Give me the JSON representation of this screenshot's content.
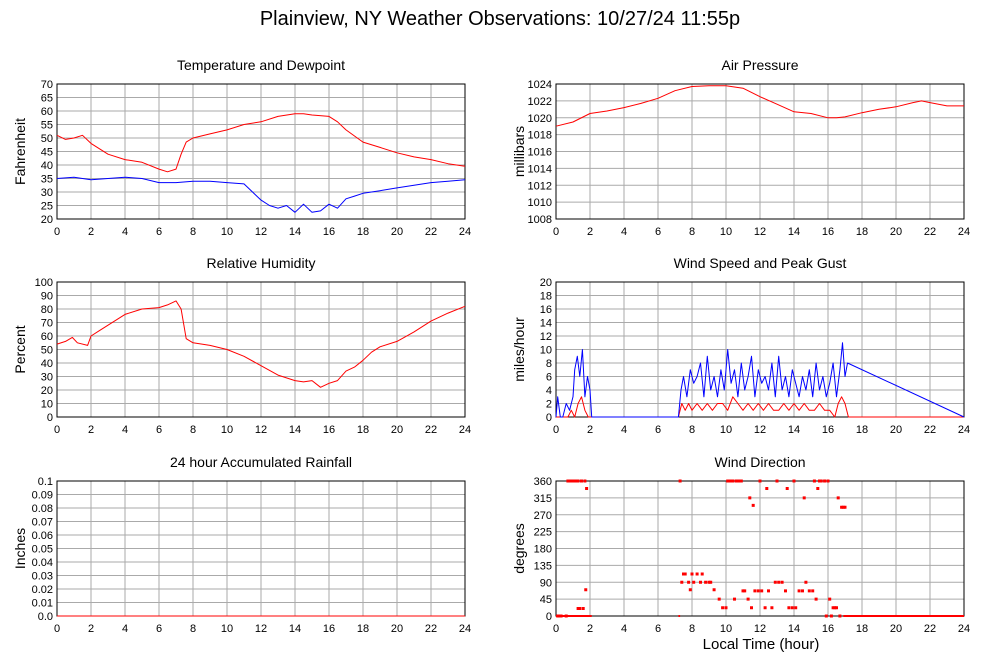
{
  "title": "Plainview, NY Weather Observations: 10/27/24 11:55p",
  "x_axis_label": "Local Time (hour)",
  "colors": {
    "red": "#ff0000",
    "blue": "#0000ff",
    "grid": "#aaaaaa",
    "frame": "#000000"
  },
  "chart_data": [
    {
      "id": "temp",
      "type": "line",
      "title": "Temperature and Dewpoint",
      "ylabel": "Fahrenheit",
      "xlim": [
        0,
        24
      ],
      "ylim": [
        20,
        70
      ],
      "yticks": [
        20,
        25,
        30,
        35,
        40,
        45,
        50,
        55,
        60,
        65,
        70
      ],
      "xticks": [
        0,
        2,
        4,
        6,
        8,
        10,
        12,
        14,
        16,
        18,
        20,
        22,
        24
      ],
      "grid": true,
      "series": [
        {
          "color": "#ff0000",
          "style": "line",
          "x": [
            0,
            0.5,
            1.0,
            1.5,
            2.0,
            3.0,
            4.0,
            5.0,
            6.0,
            6.5,
            7.0,
            7.3,
            7.6,
            8.0,
            9.0,
            10.0,
            11.0,
            12.0,
            13.0,
            14.0,
            14.5,
            15.0,
            16.0,
            16.5,
            17.0,
            18.0,
            19.0,
            20.0,
            21.0,
            22.0,
            23.0,
            24.0
          ],
          "y": [
            51,
            49.5,
            50,
            51,
            48,
            44,
            42,
            41,
            38.5,
            37.5,
            38.5,
            44,
            48.5,
            50,
            51.5,
            53,
            55,
            56,
            58,
            59,
            59,
            58.5,
            58,
            56,
            53,
            48.5,
            46.5,
            44.5,
            43,
            42,
            40.5,
            39.5
          ]
        },
        {
          "color": "#0000ff",
          "style": "line",
          "x": [
            0,
            1,
            2,
            3,
            4,
            5,
            6,
            7,
            8,
            9,
            10,
            11,
            11.5,
            12,
            12.5,
            13,
            13.5,
            14,
            14.5,
            15,
            15.5,
            16,
            16.5,
            17,
            17.5,
            18,
            19,
            20,
            21,
            22,
            23,
            24
          ],
          "y": [
            35,
            35.5,
            34.5,
            35,
            35.5,
            35,
            33.5,
            33.5,
            34,
            34,
            33.5,
            33,
            30,
            27,
            25,
            24,
            25,
            22.5,
            25.5,
            22.5,
            23,
            25.5,
            24,
            27.5,
            28.5,
            29.5,
            30.5,
            31.5,
            32.5,
            33.5,
            34,
            34.5
          ]
        }
      ]
    },
    {
      "id": "pressure",
      "type": "line",
      "title": "Air Pressure",
      "ylabel": "millibars",
      "xlim": [
        0,
        24
      ],
      "ylim": [
        1008,
        1024
      ],
      "yticks": [
        1008,
        1010,
        1012,
        1014,
        1016,
        1018,
        1020,
        1022,
        1024
      ],
      "xticks": [
        0,
        2,
        4,
        6,
        8,
        10,
        12,
        14,
        16,
        18,
        20,
        22,
        24
      ],
      "grid": true,
      "series": [
        {
          "color": "#ff0000",
          "style": "line",
          "x": [
            0,
            1,
            2,
            3,
            4,
            5,
            6,
            7,
            8,
            9,
            10,
            11,
            12,
            13,
            14,
            15,
            16,
            16.5,
            17,
            18,
            19,
            20,
            21,
            21.5,
            22,
            23,
            24
          ],
          "y": [
            1019,
            1019.5,
            1020.5,
            1020.8,
            1021.2,
            1021.7,
            1022.3,
            1023.2,
            1023.7,
            1023.8,
            1023.8,
            1023.5,
            1022.5,
            1021.6,
            1020.7,
            1020.5,
            1020,
            1020,
            1020.1,
            1020.6,
            1021,
            1021.3,
            1021.8,
            1022,
            1021.8,
            1021.4,
            1021.4
          ]
        }
      ]
    },
    {
      "id": "humidity",
      "type": "line",
      "title": "Relative Humidity",
      "ylabel": "Percent",
      "xlim": [
        0,
        24
      ],
      "ylim": [
        0,
        100
      ],
      "yticks": [
        0,
        10,
        20,
        30,
        40,
        50,
        60,
        70,
        80,
        90,
        100
      ],
      "xticks": [
        0,
        2,
        4,
        6,
        8,
        10,
        12,
        14,
        16,
        18,
        20,
        22,
        24
      ],
      "grid": true,
      "series": [
        {
          "color": "#ff0000",
          "style": "line",
          "x": [
            0,
            0.5,
            0.9,
            1.2,
            1.8,
            2.0,
            2.5,
            3.0,
            4.0,
            5.0,
            6.0,
            6.5,
            7.0,
            7.3,
            7.6,
            8.0,
            9.0,
            10.0,
            11.0,
            12.0,
            13.0,
            14.0,
            14.5,
            15.0,
            15.5,
            16.0,
            16.5,
            17.0,
            17.5,
            18.0,
            18.5,
            19.0,
            20.0,
            21.0,
            22.0,
            23.0,
            24.0
          ],
          "y": [
            54,
            56,
            59,
            55,
            53,
            60,
            64,
            68,
            76,
            80,
            81,
            83,
            86,
            80,
            58,
            55,
            53,
            50,
            45,
            38,
            31,
            27,
            26,
            27,
            22,
            25,
            27,
            34,
            37,
            42,
            48,
            52,
            56,
            63,
            71,
            77,
            82
          ]
        }
      ]
    },
    {
      "id": "wind",
      "type": "line",
      "title": "Wind Speed and Peak Gust",
      "ylabel": "miles/hour",
      "xlim": [
        0,
        24
      ],
      "ylim": [
        0,
        20
      ],
      "yticks": [
        0,
        2,
        4,
        6,
        8,
        10,
        12,
        14,
        16,
        18,
        20
      ],
      "xticks": [
        0,
        2,
        4,
        6,
        8,
        10,
        12,
        14,
        16,
        18,
        20,
        22,
        24
      ],
      "grid": true,
      "series": [
        {
          "color": "#ff0000",
          "style": "line",
          "x": [
            0,
            0.7,
            0.9,
            1.1,
            1.3,
            1.5,
            1.7,
            1.9,
            2.1,
            7.2,
            7.4,
            7.6,
            7.8,
            8.0,
            8.3,
            8.6,
            8.9,
            9.2,
            9.5,
            9.8,
            10.1,
            10.4,
            10.7,
            11.0,
            11.3,
            11.6,
            11.9,
            12.2,
            12.5,
            12.8,
            13.1,
            13.4,
            13.7,
            14.0,
            14.3,
            14.6,
            14.9,
            15.2,
            15.5,
            15.8,
            16.1,
            16.4,
            16.6,
            16.8,
            17.0,
            17.2,
            24
          ],
          "y": [
            0,
            0,
            1,
            0,
            2,
            3,
            1,
            0,
            0,
            0,
            2,
            1,
            2,
            1,
            2,
            1,
            2,
            1,
            2,
            2,
            1,
            3,
            2,
            1,
            2,
            1,
            2,
            1,
            2,
            1,
            1,
            2,
            1,
            2,
            1,
            2,
            1,
            1,
            2,
            1,
            1,
            0,
            2,
            3,
            2,
            0,
            0
          ]
        },
        {
          "color": "#0000ff",
          "style": "line",
          "x": [
            0,
            0.1,
            0.25,
            0.4,
            0.6,
            0.8,
            1.0,
            1.1,
            1.25,
            1.4,
            1.55,
            1.7,
            1.85,
            2.0,
            2.1,
            7.2,
            7.35,
            7.5,
            7.7,
            7.9,
            8.1,
            8.3,
            8.5,
            8.7,
            8.9,
            9.1,
            9.3,
            9.5,
            9.7,
            9.9,
            10.1,
            10.3,
            10.5,
            10.7,
            10.9,
            11.1,
            11.3,
            11.5,
            11.7,
            11.9,
            12.1,
            12.3,
            12.5,
            12.7,
            12.9,
            13.1,
            13.3,
            13.5,
            13.7,
            13.9,
            14.1,
            14.3,
            14.5,
            14.7,
            14.9,
            15.1,
            15.3,
            15.5,
            15.7,
            15.9,
            16.1,
            16.3,
            16.5,
            16.7,
            16.85,
            17.0,
            17.15,
            24
          ],
          "y": [
            0,
            3,
            0,
            0,
            2,
            1,
            3,
            7,
            9,
            6,
            10,
            3,
            6,
            4,
            0,
            0,
            4,
            6,
            3,
            7,
            5,
            6,
            8,
            3,
            9,
            4,
            6,
            3,
            7,
            4,
            10,
            5,
            7,
            3,
            8,
            4,
            6,
            9,
            3,
            7,
            5,
            6,
            4,
            8,
            3,
            9,
            4,
            6,
            3,
            7,
            5,
            3,
            6,
            4,
            7,
            3,
            8,
            4,
            6,
            3,
            5,
            8,
            3,
            7,
            11,
            6,
            8,
            0
          ]
        }
      ]
    },
    {
      "id": "rain",
      "type": "line",
      "title": "24 hour Accumulated Rainfall",
      "ylabel": "Inches",
      "xlim": [
        0,
        24
      ],
      "ylim": [
        0,
        0.1
      ],
      "yticks": [
        0.0,
        0.01,
        0.02,
        0.03,
        0.04,
        0.05,
        0.06,
        0.07,
        0.08,
        0.09,
        0.1
      ],
      "ytick_labels": [
        "0.0",
        "0.01",
        "0.02",
        "0.03",
        "0.04",
        "0.05",
        "0.06",
        "0.07",
        "0.08",
        "0.09",
        "0.1"
      ],
      "xticks": [
        0,
        2,
        4,
        6,
        8,
        10,
        12,
        14,
        16,
        18,
        20,
        22,
        24
      ],
      "grid": true,
      "series": [
        {
          "color": "#ff0000",
          "style": "line",
          "x": [
            0,
            24
          ],
          "y": [
            0,
            0
          ]
        }
      ]
    },
    {
      "id": "direction",
      "type": "scatter",
      "title": "Wind Direction",
      "ylabel": "degrees",
      "xlim": [
        0,
        24
      ],
      "ylim": [
        0,
        360
      ],
      "yticks": [
        0,
        45,
        90,
        135,
        180,
        225,
        270,
        315,
        360
      ],
      "xticks": [
        0,
        2,
        4,
        6,
        8,
        10,
        12,
        14,
        16,
        18,
        20,
        22,
        24
      ],
      "grid": true,
      "series": [
        {
          "color": "#ff0000",
          "style": "points",
          "x": [
            0.1,
            0.2,
            0.3,
            0.6,
            0.7,
            0.8,
            0.9,
            1.0,
            1.1,
            1.2,
            1.3,
            1.5,
            1.7,
            1.8,
            1.3,
            1.4,
            1.6,
            1.75,
            7.3,
            7.4,
            7.5,
            7.6,
            7.8,
            7.9,
            8.0,
            8.1,
            8.3,
            8.5,
            8.6,
            8.8,
            9.0,
            9.1,
            9.3,
            9.6,
            9.8,
            10.0,
            10.1,
            10.3,
            10.4,
            10.5,
            10.6,
            10.7,
            10.8,
            11.0,
            11.1,
            11.3,
            11.5,
            11.7,
            11.9,
            12.1,
            12.3,
            12.5,
            12.7,
            12.9,
            13.1,
            13.3,
            13.5,
            13.7,
            13.9,
            14.1,
            14.3,
            14.5,
            14.7,
            14.9,
            15.1,
            15.3,
            15.5,
            15.6,
            15.8,
            16.0,
            16.1,
            16.3,
            16.5,
            16.6,
            16.8,
            16.9,
            17.0,
            10.2,
            10.9,
            11.4,
            11.6,
            12.0,
            12.4,
            13.0,
            13.6,
            14.0,
            14.6,
            15.2,
            15.4,
            15.9,
            16.2,
            16.4,
            16.7
          ],
          "y": [
            0,
            0,
            0,
            0,
            360,
            360,
            360,
            360,
            360,
            360,
            360,
            360,
            360,
            340,
            20,
            20,
            20,
            70,
            360,
            90,
            112,
            112,
            90,
            70,
            112,
            90,
            112,
            90,
            112,
            90,
            90,
            90,
            70,
            45,
            22,
            22,
            360,
            360,
            360,
            45,
            360,
            360,
            360,
            67,
            67,
            45,
            22,
            67,
            67,
            67,
            22,
            67,
            22,
            90,
            90,
            90,
            67,
            22,
            22,
            22,
            67,
            67,
            90,
            67,
            67,
            45,
            360,
            360,
            360,
            360,
            45,
            22,
            22,
            315,
            290,
            290,
            290,
            360,
            360,
            315,
            295,
            360,
            340,
            360,
            340,
            360,
            315,
            360,
            340,
            0,
            0,
            22,
            0
          ]
        }
      ],
      "calm_line": {
        "color": "#ff0000",
        "ranges": [
          [
            0,
            2.1
          ],
          [
            7.2,
            7.3
          ],
          [
            16.9,
            24
          ]
        ],
        "y": 0
      }
    }
  ]
}
